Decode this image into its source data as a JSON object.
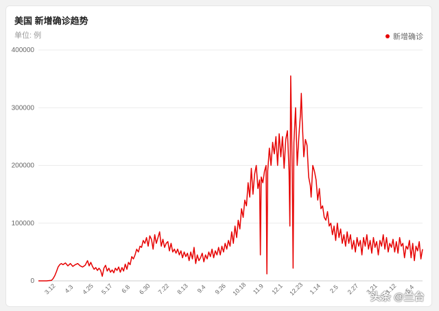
{
  "chart_data": {
    "type": "line",
    "title": "美国 新增确诊趋势",
    "unit_label": "单位: 例",
    "ylim": [
      0,
      400000
    ],
    "y_ticks": [
      "0",
      "100000",
      "200000",
      "300000",
      "400000"
    ],
    "x_ticks": [
      "3.12",
      "4.3",
      "4.25",
      "5.17",
      "6.8",
      "6.30",
      "7.22",
      "8.13",
      "9.4",
      "9.26",
      "10.18",
      "11.9",
      "12.1",
      "12.23",
      "1.14",
      "2.5",
      "2.27",
      "3.21",
      "4.12",
      "5.4"
    ],
    "legend": "top-right",
    "series": [
      {
        "name": "新增确诊",
        "color": "#e60000",
        "points": [
          [
            0,
            0
          ],
          [
            10,
            0
          ],
          [
            16,
            1000
          ],
          [
            18,
            4000
          ],
          [
            20,
            9000
          ],
          [
            22,
            16000
          ],
          [
            24,
            24000
          ],
          [
            26,
            28000
          ],
          [
            28,
            30000
          ],
          [
            30,
            28000
          ],
          [
            33,
            31000
          ],
          [
            36,
            26000
          ],
          [
            39,
            30000
          ],
          [
            42,
            25000
          ],
          [
            45,
            28000
          ],
          [
            48,
            30000
          ],
          [
            51,
            26000
          ],
          [
            54,
            24000
          ],
          [
            57,
            27000
          ],
          [
            60,
            35000
          ],
          [
            62,
            26000
          ],
          [
            64,
            32000
          ],
          [
            66,
            25000
          ],
          [
            68,
            20000
          ],
          [
            70,
            23000
          ],
          [
            72,
            18000
          ],
          [
            74,
            22000
          ],
          [
            76,
            18000
          ],
          [
            78,
            8000
          ],
          [
            80,
            22000
          ],
          [
            82,
            27000
          ],
          [
            84,
            17000
          ],
          [
            86,
            22000
          ],
          [
            88,
            15000
          ],
          [
            90,
            19000
          ],
          [
            92,
            14000
          ],
          [
            94,
            22000
          ],
          [
            96,
            18000
          ],
          [
            98,
            24000
          ],
          [
            100,
            15000
          ],
          [
            102,
            23000
          ],
          [
            104,
            17000
          ],
          [
            106,
            29000
          ],
          [
            108,
            20000
          ],
          [
            110,
            32000
          ],
          [
            112,
            28000
          ],
          [
            114,
            42000
          ],
          [
            116,
            38000
          ],
          [
            118,
            45000
          ],
          [
            120,
            55000
          ],
          [
            122,
            50000
          ],
          [
            124,
            60000
          ],
          [
            126,
            58000
          ],
          [
            128,
            70000
          ],
          [
            130,
            65000
          ],
          [
            132,
            75000
          ],
          [
            134,
            60000
          ],
          [
            136,
            78000
          ],
          [
            138,
            72000
          ],
          [
            140,
            55000
          ],
          [
            142,
            80000
          ],
          [
            144,
            65000
          ],
          [
            146,
            75000
          ],
          [
            148,
            85000
          ],
          [
            150,
            60000
          ],
          [
            152,
            72000
          ],
          [
            154,
            58000
          ],
          [
            156,
            65000
          ],
          [
            158,
            68000
          ],
          [
            160,
            52000
          ],
          [
            162,
            65000
          ],
          [
            164,
            50000
          ],
          [
            166,
            55000
          ],
          [
            168,
            48000
          ],
          [
            170,
            55000
          ],
          [
            172,
            45000
          ],
          [
            174,
            52000
          ],
          [
            176,
            40000
          ],
          [
            178,
            50000
          ],
          [
            180,
            42000
          ],
          [
            182,
            48000
          ],
          [
            184,
            35000
          ],
          [
            186,
            50000
          ],
          [
            188,
            38000
          ],
          [
            190,
            58000
          ],
          [
            192,
            30000
          ],
          [
            194,
            45000
          ],
          [
            196,
            35000
          ],
          [
            198,
            40000
          ],
          [
            200,
            48000
          ],
          [
            202,
            33000
          ],
          [
            204,
            45000
          ],
          [
            206,
            38000
          ],
          [
            208,
            50000
          ],
          [
            210,
            42000
          ],
          [
            212,
            55000
          ],
          [
            214,
            40000
          ],
          [
            216,
            52000
          ],
          [
            218,
            45000
          ],
          [
            220,
            58000
          ],
          [
            222,
            45000
          ],
          [
            224,
            60000
          ],
          [
            226,
            50000
          ],
          [
            228,
            65000
          ],
          [
            230,
            55000
          ],
          [
            232,
            70000
          ],
          [
            234,
            60000
          ],
          [
            236,
            85000
          ],
          [
            238,
            65000
          ],
          [
            240,
            95000
          ],
          [
            242,
            75000
          ],
          [
            244,
            105000
          ],
          [
            246,
            90000
          ],
          [
            248,
            125000
          ],
          [
            250,
            110000
          ],
          [
            252,
            140000
          ],
          [
            254,
            130000
          ],
          [
            256,
            170000
          ],
          [
            258,
            145000
          ],
          [
            260,
            195000
          ],
          [
            262,
            150000
          ],
          [
            264,
            185000
          ],
          [
            266,
            200000
          ],
          [
            268,
            160000
          ],
          [
            270,
            175000
          ],
          [
            271,
            45000
          ],
          [
            272,
            180000
          ],
          [
            274,
            170000
          ],
          [
            276,
            190000
          ],
          [
            278,
            200000
          ],
          [
            279,
            12000
          ],
          [
            280,
            190000
          ],
          [
            282,
            230000
          ],
          [
            284,
            200000
          ],
          [
            286,
            240000
          ],
          [
            288,
            220000
          ],
          [
            290,
            250000
          ],
          [
            292,
            200000
          ],
          [
            294,
            255000
          ],
          [
            296,
            215000
          ],
          [
            298,
            250000
          ],
          [
            300,
            195000
          ],
          [
            302,
            245000
          ],
          [
            304,
            260000
          ],
          [
            306,
            190000
          ],
          [
            307,
            95000
          ],
          [
            308,
            355000
          ],
          [
            310,
            185000
          ],
          [
            311,
            22000
          ],
          [
            312,
            240000
          ],
          [
            314,
            300000
          ],
          [
            316,
            200000
          ],
          [
            318,
            250000
          ],
          [
            320,
            290000
          ],
          [
            321,
            325000
          ],
          [
            322,
            280000
          ],
          [
            324,
            215000
          ],
          [
            326,
            245000
          ],
          [
            328,
            235000
          ],
          [
            330,
            180000
          ],
          [
            332,
            165000
          ],
          [
            333,
            145000
          ],
          [
            335,
            200000
          ],
          [
            337,
            190000
          ],
          [
            339,
            175000
          ],
          [
            341,
            140000
          ],
          [
            343,
            160000
          ],
          [
            345,
            125000
          ],
          [
            347,
            130000
          ],
          [
            349,
            110000
          ],
          [
            351,
            105000
          ],
          [
            353,
            120000
          ],
          [
            355,
            95000
          ],
          [
            357,
            100000
          ],
          [
            359,
            80000
          ],
          [
            361,
            95000
          ],
          [
            363,
            70000
          ],
          [
            365,
            100000
          ],
          [
            367,
            75000
          ],
          [
            369,
            90000
          ],
          [
            371,
            65000
          ],
          [
            373,
            80000
          ],
          [
            375,
            60000
          ],
          [
            377,
            85000
          ],
          [
            379,
            65000
          ],
          [
            381,
            80000
          ],
          [
            383,
            55000
          ],
          [
            385,
            70000
          ],
          [
            387,
            50000
          ],
          [
            389,
            75000
          ],
          [
            391,
            60000
          ],
          [
            393,
            70000
          ],
          [
            395,
            45000
          ],
          [
            397,
            75000
          ],
          [
            399,
            60000
          ],
          [
            401,
            80000
          ],
          [
            403,
            55000
          ],
          [
            405,
            70000
          ],
          [
            407,
            48000
          ],
          [
            409,
            75000
          ],
          [
            411,
            58000
          ],
          [
            413,
            68000
          ],
          [
            415,
            45000
          ],
          [
            417,
            70000
          ],
          [
            419,
            60000
          ],
          [
            421,
            80000
          ],
          [
            423,
            55000
          ],
          [
            425,
            75000
          ],
          [
            427,
            50000
          ],
          [
            429,
            65000
          ],
          [
            431,
            58000
          ],
          [
            433,
            72000
          ],
          [
            435,
            50000
          ],
          [
            437,
            68000
          ],
          [
            439,
            48000
          ],
          [
            441,
            75000
          ],
          [
            443,
            60000
          ],
          [
            445,
            65000
          ],
          [
            447,
            40000
          ],
          [
            449,
            60000
          ],
          [
            451,
            55000
          ],
          [
            453,
            70000
          ],
          [
            455,
            40000
          ],
          [
            457,
            65000
          ],
          [
            459,
            35000
          ],
          [
            461,
            60000
          ],
          [
            463,
            52000
          ],
          [
            465,
            68000
          ],
          [
            467,
            38000
          ],
          [
            469,
            55000
          ]
        ]
      }
    ]
  },
  "watermark": "头条 @兰台"
}
